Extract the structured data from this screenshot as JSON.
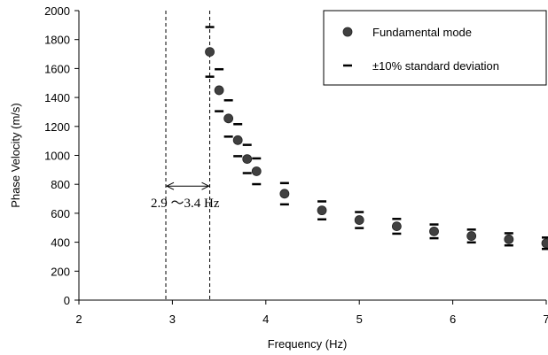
{
  "chart_data": {
    "type": "scatter",
    "xlabel": "Frequency (Hz)",
    "ylabel": "Phase Velocity (m/s)",
    "xlim": [
      2,
      7
    ],
    "ylim": [
      0,
      2000
    ],
    "x_ticks": [
      "2",
      "3",
      "4",
      "5",
      "6",
      "7"
    ],
    "y_ticks": [
      "0",
      "200",
      "400",
      "600",
      "800",
      "1000",
      "1200",
      "1400",
      "1600",
      "1800",
      "2000"
    ],
    "grid": false,
    "legend_position": "top-right",
    "series": [
      {
        "name": "Fundamental mode",
        "marker": "circle",
        "color": "#404040",
        "x": [
          3.4,
          3.5,
          3.6,
          3.7,
          3.8,
          3.9,
          4.2,
          4.6,
          5.0,
          5.4,
          5.8,
          6.2,
          6.6,
          7.0
        ],
        "y": [
          1715,
          1450,
          1255,
          1105,
          975,
          890,
          735,
          620,
          553,
          510,
          475,
          443,
          420,
          393
        ],
        "error_pct": 10
      }
    ],
    "error_legend": "±10% standard deviation",
    "annotation": {
      "text": "2.9 ～3.4 Hz",
      "x_range": [
        2.93,
        3.4
      ],
      "arrow_y": 800
    }
  }
}
